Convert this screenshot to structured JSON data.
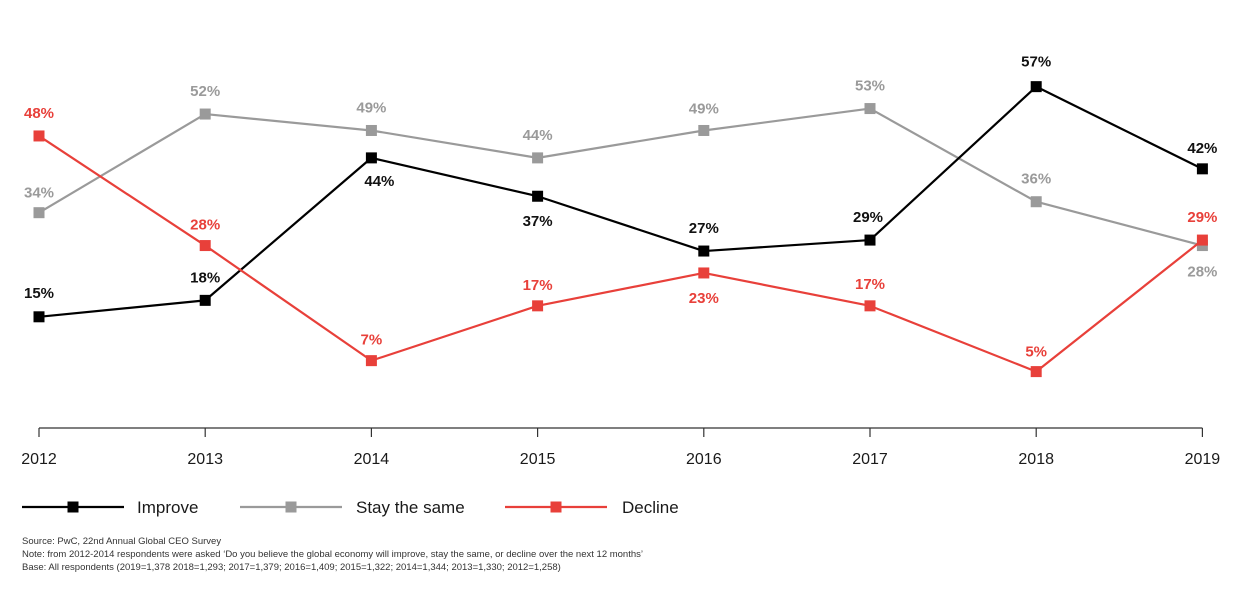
{
  "chart_data": {
    "type": "line",
    "title": "",
    "xlabel": "",
    "ylabel": "",
    "categories": [
      "2012",
      "2013",
      "2014",
      "2015",
      "2016",
      "2017",
      "2018",
      "2019"
    ],
    "value_suffix": "%",
    "grid": false,
    "legend_position": "bottom-left",
    "series": [
      {
        "name": "Improve",
        "color": "#000000",
        "values": [
          15,
          18,
          44,
          37,
          27,
          29,
          57,
          42
        ]
      },
      {
        "name": "Stay the same",
        "color": "#9a9a9a",
        "values": [
          34,
          52,
          49,
          44,
          49,
          53,
          36,
          28
        ]
      },
      {
        "name": "Decline",
        "color": "#e8403a",
        "values": [
          48,
          28,
          7,
          17,
          23,
          17,
          5,
          29
        ]
      }
    ]
  },
  "notes": {
    "source": "Source: PwC, 22nd Annual Global CEO Survey",
    "note": "Note: from 2012-2014 respondents were asked ‘Do you believe the global economy will improve, stay the same, or decline over the next 12 months’",
    "base": "Base: All respondents (2019=1,378 2018=1,293; 2017=1,379; 2016=1,409; 2015=1,322; 2014=1,344; 2013=1,330; 2012=1,258)"
  }
}
